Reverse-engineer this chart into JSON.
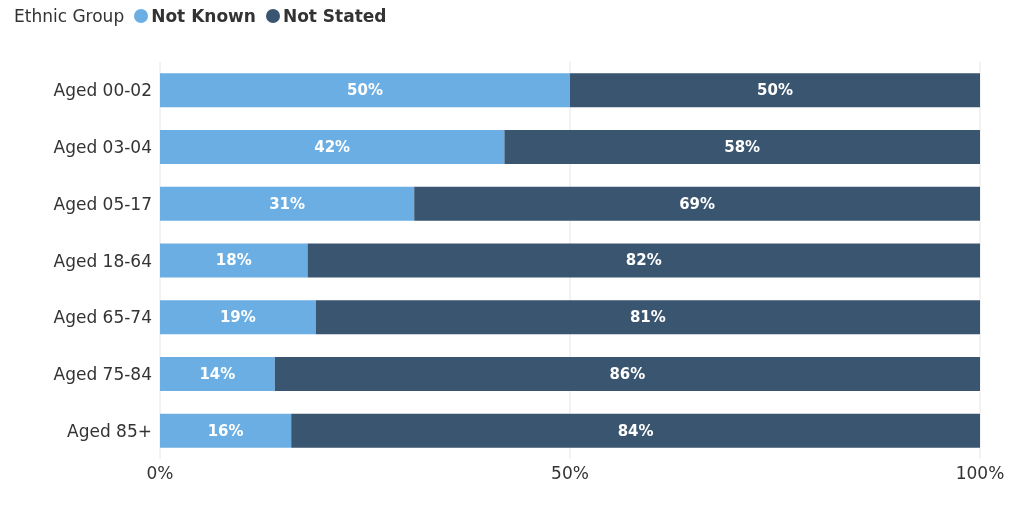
{
  "chart_data": {
    "type": "bar",
    "orientation": "horizontal",
    "stacked": true,
    "legend_title": "Ethnic Group",
    "legend": "top left",
    "grid": "x",
    "categories": [
      "Aged 00-02",
      "Aged 03-04",
      "Aged 05-17",
      "Aged 18-64",
      "Aged 65-74",
      "Aged 75-84",
      "Aged 85+"
    ],
    "xlim": [
      0,
      100
    ],
    "xticks": [
      {
        "value": 0,
        "label": "0%"
      },
      {
        "value": 50,
        "label": "50%"
      },
      {
        "value": 100,
        "label": "100%"
      }
    ],
    "series": [
      {
        "name": "Not Known",
        "color": "#6aaee3",
        "values": [
          50,
          42,
          31,
          18,
          19,
          14,
          16
        ],
        "value_labels": [
          "50%",
          "42%",
          "31%",
          "18%",
          "19%",
          "14%",
          "16%"
        ]
      },
      {
        "name": "Not Stated",
        "color": "#3a5570",
        "values": [
          50,
          58,
          69,
          82,
          81,
          86,
          84
        ],
        "value_labels": [
          "50%",
          "58%",
          "69%",
          "82%",
          "81%",
          "86%",
          "84%"
        ]
      }
    ]
  }
}
